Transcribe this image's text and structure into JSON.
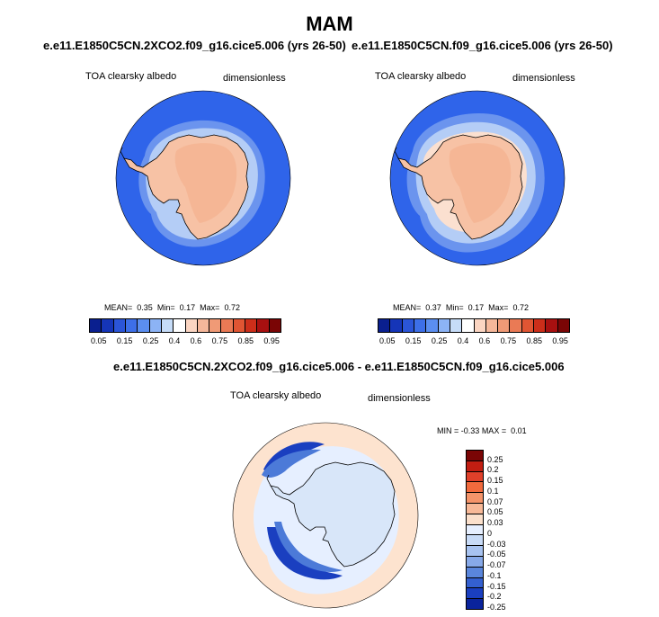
{
  "title": "MAM",
  "panels": [
    {
      "case": "e.e11.E1850C5CN.2XCO2.f09_g16.cice5.006 (yrs 26-50)",
      "var_label": "TOA clearsky albedo",
      "units": "dimensionless",
      "stats": {
        "mean_label": "MEAN=",
        "mean": "0.35",
        "min_label": "Min=",
        "min": "0.17",
        "max_label": "Max=",
        "max": "0.72"
      }
    },
    {
      "case": "e.e11.E1850C5CN.f09_g16.cice5.006 (yrs 26-50)",
      "var_label": "TOA clearsky albedo",
      "units": "dimensionless",
      "stats": {
        "mean_label": "MEAN=",
        "mean": "0.37",
        "min_label": "Min=",
        "min": "0.17",
        "max_label": "Max=",
        "max": "0.72"
      }
    }
  ],
  "diff_panel": {
    "title": "e.e11.E1850C5CN.2XCO2.f09_g16.cice5.006 - e.e11.E1850C5CN.f09_g16.cice5.006",
    "var_label": "TOA clearsky albedo",
    "units": "dimensionless",
    "stats": {
      "min_label": "MIN =",
      "min": "-0.33",
      "max_label": "MAX =",
      "max": "0.01"
    }
  },
  "colorbar_top": {
    "colors": [
      "#0a1f8f",
      "#1535b8",
      "#2b55d8",
      "#3d6fe8",
      "#5b8ef0",
      "#8cb3f5",
      "#c6dcf8",
      "#ffffff",
      "#fbd5c2",
      "#f5b79a",
      "#f09a76",
      "#ea7a55",
      "#e05533",
      "#cc2e1a",
      "#a81010",
      "#7a0505"
    ],
    "labels": [
      "0.05",
      "0.15",
      "0.25",
      "0.4",
      "0.6",
      "0.75",
      "0.85",
      "0.95"
    ]
  },
  "colorbar_diff": {
    "colors": [
      "#7a0505",
      "#c21e12",
      "#e0402a",
      "#f26a3d",
      "#f5946a",
      "#f8b998",
      "#fbe0cc",
      "#e6efff",
      "#c8dbf7",
      "#a8c3f0",
      "#87a9e8",
      "#5a86dc",
      "#3460d0",
      "#1a3fc0",
      "#0a239c"
    ],
    "labels": [
      "0.25",
      "0.2",
      "0.15",
      "0.1",
      "0.07",
      "0.05",
      "0.03",
      "0",
      "-0.03",
      "-0.05",
      "-0.07",
      "-0.1",
      "-0.15",
      "-0.2",
      "-0.25"
    ]
  },
  "map_colors": {
    "ocean": "#2f64ea",
    "seaice_edge": "#6b94ee",
    "seaice_mid": "#b4cdf6",
    "seaice_light": "#e4edfb",
    "continent": "#f7c2a5",
    "continent_inner": "#f5b695",
    "diff_background": "#fde3cf",
    "diff_continent": "#d8e6f9",
    "diff_strong": "#1a3fc0",
    "diff_mid": "#4c7ad8"
  }
}
